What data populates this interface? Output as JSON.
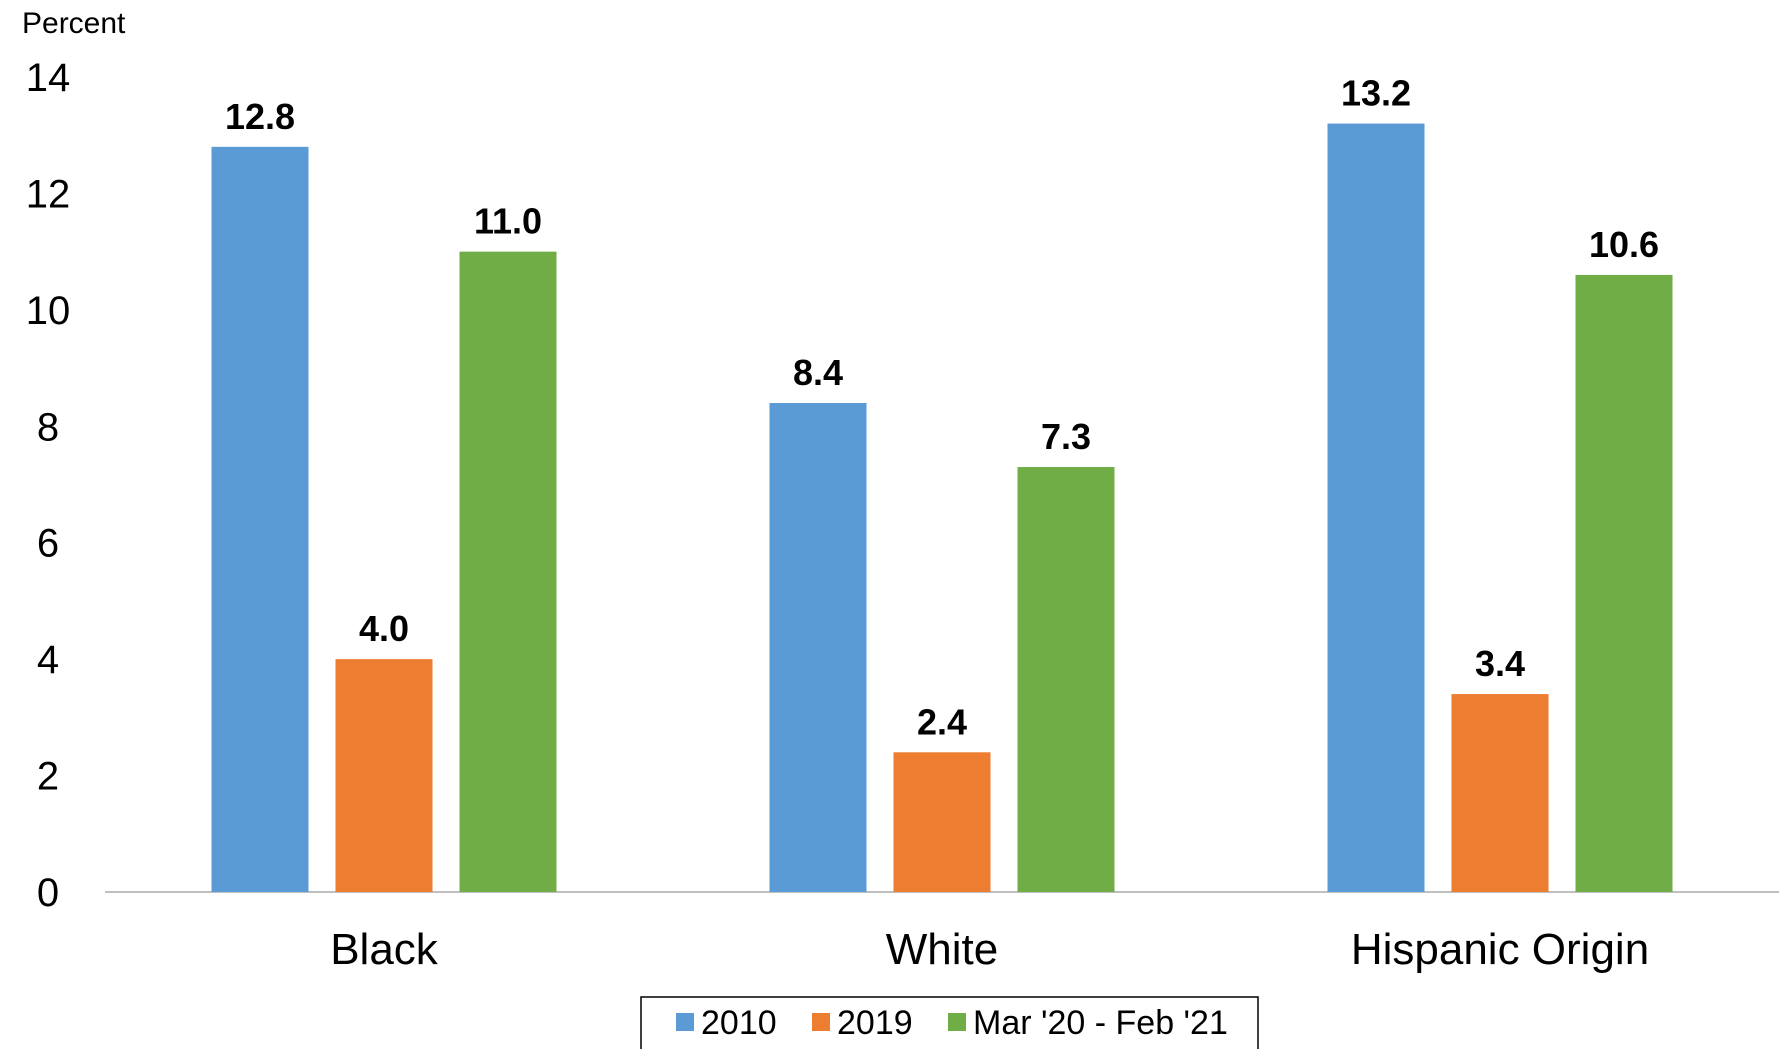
{
  "chart_data": {
    "type": "bar",
    "title": "",
    "xlabel": "",
    "ylabel": "Percent",
    "ylim": [
      0,
      14
    ],
    "yticks": [
      0,
      2,
      4,
      6,
      8,
      10,
      12,
      14
    ],
    "grid": false,
    "legend_position": "bottom",
    "categories": [
      "Black",
      "White",
      "Hispanic Origin"
    ],
    "series": [
      {
        "name": "2010",
        "color": "#5B9BD5",
        "values": [
          12.8,
          8.4,
          13.2
        ],
        "labels": [
          "12.8",
          "8.4",
          "13.2"
        ]
      },
      {
        "name": "2019",
        "color": "#ED7D31",
        "values": [
          4.0,
          2.4,
          3.4
        ],
        "labels": [
          "4.0",
          "2.4",
          "3.4"
        ]
      },
      {
        "name": "Mar '20 - Feb '21",
        "color": "#70AD47",
        "values": [
          11.0,
          7.3,
          10.6
        ],
        "labels": [
          "11.0",
          "7.3",
          "10.6"
        ]
      }
    ]
  }
}
